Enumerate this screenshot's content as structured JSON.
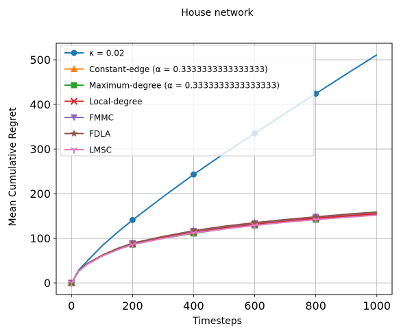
{
  "chart_data": {
    "type": "line",
    "title": "House network",
    "xlabel": "Timesteps",
    "ylabel": "Mean Cumulative Regret",
    "xlim": [
      -50,
      1050
    ],
    "ylim": [
      -26,
      537
    ],
    "xticks": [
      0,
      200,
      400,
      600,
      800,
      1000
    ],
    "yticks": [
      0,
      100,
      200,
      300,
      400,
      500
    ],
    "grid": true,
    "legend_placement": "upper-left",
    "series": [
      {
        "name": "κ = 0.02",
        "color": "#1f77b4",
        "marker": "circle",
        "x": [
          0,
          25,
          50,
          100,
          150,
          200,
          300,
          400,
          500,
          600,
          700,
          800,
          900,
          1000
        ],
        "y": [
          0,
          30,
          48,
          83,
          113,
          141,
          193,
          243,
          290,
          335,
          380,
          424,
          468,
          511
        ]
      },
      {
        "name": "Constant-edge (α = 0.3333333333333333)",
        "color": "#ff7f0e",
        "marker": "triangle-up",
        "x": [
          0,
          25,
          50,
          100,
          150,
          200,
          300,
          400,
          500,
          600,
          700,
          800,
          900,
          1000
        ],
        "y": [
          0,
          28,
          42,
          62,
          77,
          89,
          104,
          116,
          126,
          134,
          141,
          147,
          152,
          157
        ]
      },
      {
        "name": "Maximum-degree (α = 0.3333333333333333)",
        "color": "#2ca02c",
        "marker": "square",
        "x": [
          0,
          25,
          50,
          100,
          150,
          200,
          300,
          400,
          500,
          600,
          700,
          800,
          900,
          1000
        ],
        "y": [
          0,
          27,
          41,
          60,
          74,
          86,
          100,
          111,
          121,
          129,
          136,
          142,
          148,
          153
        ]
      },
      {
        "name": "Local-degree",
        "color": "#d62728",
        "marker": "x",
        "x": [
          0,
          25,
          50,
          100,
          150,
          200,
          300,
          400,
          500,
          600,
          700,
          800,
          900,
          1000
        ],
        "y": [
          0,
          28,
          42,
          61,
          76,
          88,
          102,
          114,
          124,
          132,
          139,
          145,
          150,
          155
        ]
      },
      {
        "name": "FMMC",
        "color": "#9467bd",
        "marker": "triangle-down",
        "x": [
          0,
          25,
          50,
          100,
          150,
          200,
          300,
          400,
          500,
          600,
          700,
          800,
          900,
          1000
        ],
        "y": [
          0,
          28,
          42,
          62,
          77,
          89,
          104,
          116,
          126,
          134,
          141,
          148,
          153,
          158
        ]
      },
      {
        "name": "FDLA",
        "color": "#8c564b",
        "marker": "star",
        "x": [
          0,
          25,
          50,
          100,
          150,
          200,
          300,
          400,
          500,
          600,
          700,
          800,
          900,
          1000
        ],
        "y": [
          0,
          28,
          43,
          62,
          77,
          89,
          104,
          117,
          127,
          135,
          142,
          148,
          154,
          159
        ]
      },
      {
        "name": "LMSC",
        "color": "#e377c2",
        "marker": "tri-down",
        "x": [
          0,
          25,
          50,
          100,
          150,
          200,
          300,
          400,
          500,
          600,
          700,
          800,
          900,
          1000
        ],
        "y": [
          0,
          27,
          41,
          60,
          74,
          86,
          100,
          112,
          121,
          129,
          136,
          142,
          147,
          152
        ]
      }
    ]
  }
}
